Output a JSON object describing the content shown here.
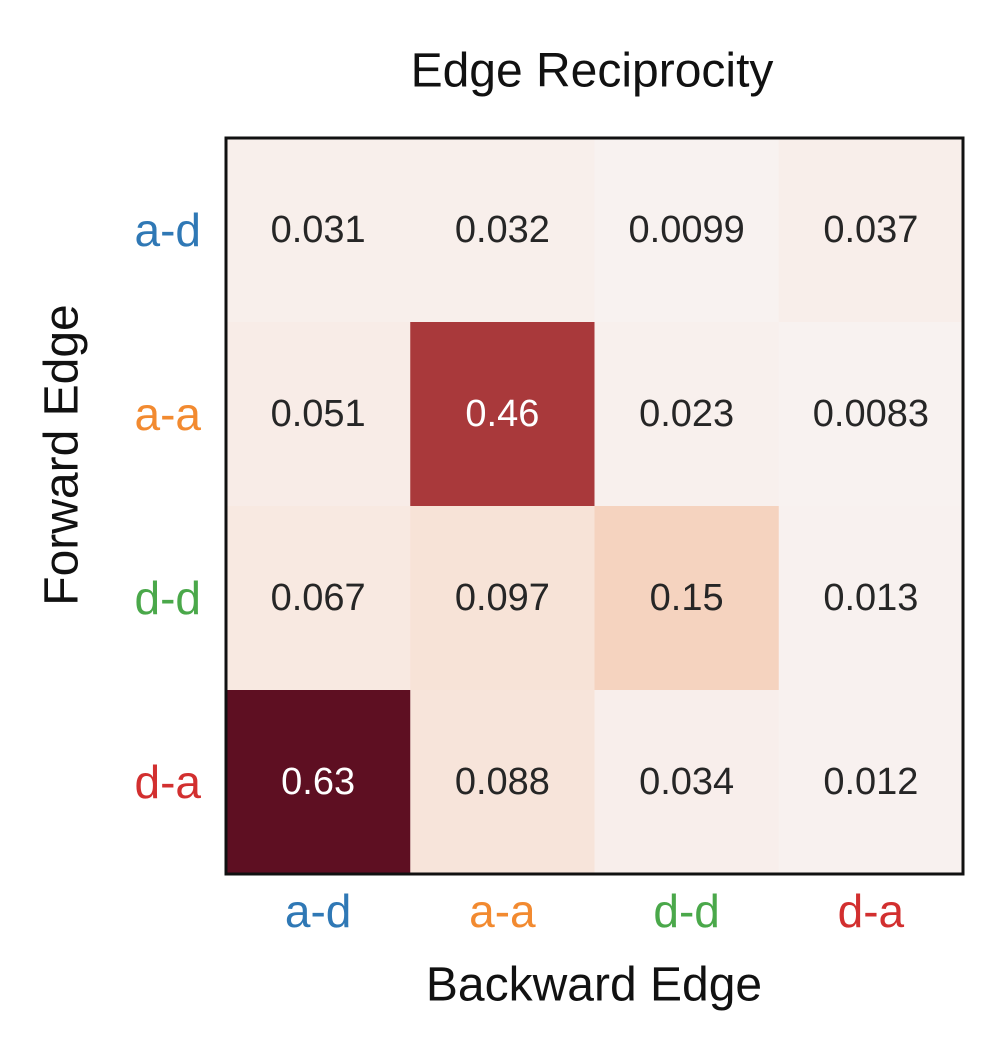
{
  "chart_data": {
    "type": "heatmap",
    "title": "Edge Reciprocity",
    "xlabel": "Backward Edge",
    "ylabel": "Forward Edge",
    "x_categories": [
      "a-d",
      "a-a",
      "d-d",
      "d-a"
    ],
    "y_categories": [
      "a-d",
      "a-a",
      "d-d",
      "d-a"
    ],
    "category_colors": {
      "a-d": "#2f78b5",
      "a-a": "#f28a30",
      "d-d": "#4aa84a",
      "d-a": "#d22f2f"
    },
    "values": [
      [
        0.031,
        0.032,
        0.0099,
        0.037
      ],
      [
        0.051,
        0.46,
        0.023,
        0.0083
      ],
      [
        0.067,
        0.097,
        0.15,
        0.013
      ],
      [
        0.63,
        0.088,
        0.034,
        0.012
      ]
    ],
    "labels": [
      [
        "0.031",
        "0.032",
        "0.0099",
        "0.037"
      ],
      [
        "0.051",
        "0.46",
        "0.023",
        "0.0083"
      ],
      [
        "0.067",
        "0.097",
        "0.15",
        "0.013"
      ],
      [
        "0.63",
        "0.088",
        "0.034",
        "0.012"
      ]
    ],
    "colormap": "Reds",
    "grid": false
  }
}
